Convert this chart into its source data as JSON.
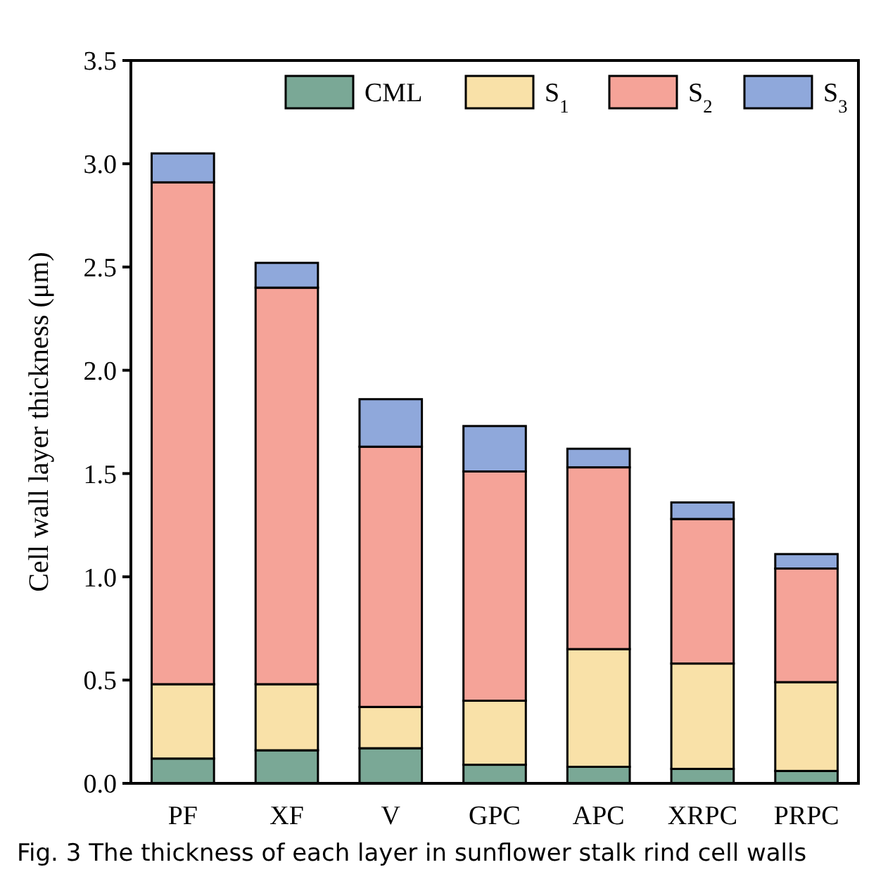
{
  "chart_data": {
    "type": "bar",
    "stacked": true,
    "ylabel": "Cell wall layer thickness (μm)",
    "categories": [
      "PF",
      "XF",
      "V",
      "GPC",
      "APC",
      "XRPC",
      "PRPC"
    ],
    "series": [
      {
        "name": "CML",
        "color": "#7aa896",
        "values": [
          0.12,
          0.16,
          0.17,
          0.09,
          0.08,
          0.07,
          0.06
        ]
      },
      {
        "name": "S$_{1}$",
        "color": "#f9e1a8",
        "values": [
          0.36,
          0.32,
          0.2,
          0.31,
          0.57,
          0.51,
          0.43
        ]
      },
      {
        "name": "S$_{2}$",
        "color": "#f5a398",
        "values": [
          2.43,
          1.92,
          1.26,
          1.11,
          0.88,
          0.7,
          0.55
        ]
      },
      {
        "name": "S$_{3}$",
        "color": "#8fa8db",
        "values": [
          0.14,
          0.12,
          0.23,
          0.22,
          0.09,
          0.08,
          0.07
        ]
      }
    ],
    "ylim": [
      0,
      3.5
    ],
    "yticks": [
      {
        "value": 0,
        "label": "0.0"
      },
      {
        "value": 0.5,
        "label": "0.5"
      },
      {
        "value": 1,
        "label": "1.0"
      },
      {
        "value": 1.5,
        "label": "1.5"
      },
      {
        "value": 2,
        "label": "2.0"
      },
      {
        "value": 2.5,
        "label": "2.5"
      },
      {
        "value": 3,
        "label": "3.0"
      },
      {
        "value": 3.5,
        "label": "3.5"
      }
    ],
    "legend": "top right",
    "grid": false,
    "annotations": [
      "Fig. 3  The thickness of each layer in sunflower stalk rind cell walls"
    ]
  }
}
